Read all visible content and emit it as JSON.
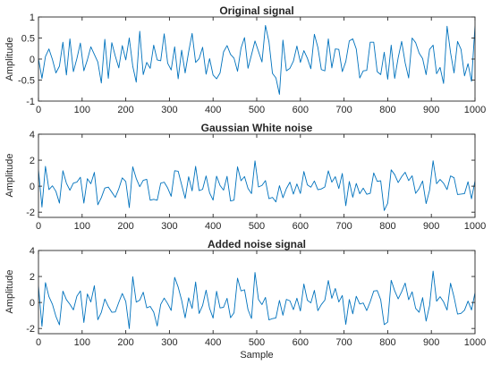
{
  "chart_data": [
    {
      "type": "line",
      "title": "Original signal",
      "xlabel": "",
      "ylabel": "Amplitude",
      "xlim": [
        0,
        1000
      ],
      "ylim": [
        -1,
        1
      ],
      "x_ticks": [
        0,
        100,
        200,
        300,
        400,
        500,
        600,
        700,
        800,
        900,
        1000
      ],
      "y_ticks": [
        -1,
        -0.5,
        0,
        0.5,
        1
      ],
      "y_tick_labels": [
        "-1",
        "-0.5",
        "0",
        "0.5",
        "1"
      ],
      "grid": false,
      "line_color": "#0072bd",
      "series": [
        {
          "x_start": 0,
          "x_step": 8,
          "values": [
            0.01,
            -0.46,
            0.06,
            0.24,
            -0.01,
            -0.33,
            -0.17,
            0.4,
            -0.38,
            0.48,
            -0.3,
            0.01,
            0.38,
            -0.28,
            -0.02,
            0.29,
            0.11,
            -0.07,
            -0.57,
            0.47,
            -0.46,
            0.39,
            0.07,
            -0.21,
            0.32,
            -0.02,
            0.5,
            -0.17,
            -0.55,
            0.66,
            -0.37,
            -0.08,
            -0.22,
            0.33,
            -0.02,
            -0.04,
            0.6,
            -0.1,
            -0.26,
            0.29,
            -0.47,
            0.21,
            -0.33,
            0.17,
            0.61,
            -0.08,
            0.01,
            0.28,
            -0.36,
            0.01,
            -0.38,
            -0.47,
            -0.33,
            0.17,
            0.32,
            0.11,
            0.02,
            -0.29,
            0.26,
            0.51,
            -0.22,
            0.1,
            0.43,
            0.18,
            -0.07,
            0.8,
            0.41,
            -0.34,
            -0.45,
            -0.84,
            0.45,
            -0.28,
            -0.22,
            -0.05,
            0.31,
            -0.08,
            0.2,
            0.02,
            -0.23,
            0.59,
            0.28,
            -0.25,
            -0.28,
            0.48,
            -0.21,
            0.24,
            0.23,
            -0.3,
            -0.06,
            0.43,
            0.48,
            0.24,
            -0.45,
            -0.28,
            -0.27,
            0.4,
            0.4,
            -0.3,
            -0.37,
            0.16,
            -0.48,
            0.33,
            -0.46,
            0.03,
            0.42,
            -0.09,
            -0.45,
            0.5,
            0.39,
            0.14,
            0.01,
            -0.37,
            0.23,
            0.33,
            -0.35,
            -0.2,
            -0.58,
            0.78,
            0.15,
            -0.33,
            0.42,
            0.23,
            -0.4,
            -0.11,
            -0.53,
            0.79
          ]
        }
      ]
    },
    {
      "type": "line",
      "title": "Gaussian White noise",
      "xlabel": "",
      "ylabel": "Amplitude",
      "xlim": [
        0,
        1000
      ],
      "ylim": [
        -2.4,
        4
      ],
      "x_ticks": [
        0,
        100,
        200,
        300,
        400,
        500,
        600,
        700,
        800,
        900,
        1000
      ],
      "y_ticks": [
        -2,
        0,
        2,
        4
      ],
      "y_tick_labels": [
        "-2",
        "0",
        "2",
        "4"
      ],
      "grid": false,
      "line_color": "#0072bd",
      "series": [
        {
          "x_start": 0,
          "x_step": 8,
          "values": [
            1.27,
            -1.61,
            1.53,
            -0.26,
            0.03,
            -0.4,
            -1.3,
            1.19,
            0.23,
            -0.31,
            0.24,
            0.31,
            0.69,
            -1.3,
            0.58,
            0.19,
            1.06,
            -1.43,
            -0.88,
            -0.14,
            -0.07,
            -0.46,
            -0.86,
            -0.2,
            0.64,
            0.36,
            -1.65,
            1.49,
            0.59,
            -0.04,
            0.45,
            0.53,
            -1.08,
            -1.01,
            -1.08,
            0.23,
            0.31,
            -0.14,
            -0.78,
            1.19,
            1.15,
            0.1,
            -0.94,
            0.73,
            -0.36,
            1.53,
            -0.34,
            -0.24,
            0.79,
            -0.51,
            -1.07,
            0.77,
            0.05,
            -0.3,
            0.76,
            -1.14,
            -1.07,
            1.49,
            0.42,
            0.74,
            -0.17,
            -0.57,
            1.95,
            -0.06,
            0.06,
            0.43,
            -0.96,
            -0.86,
            -1.21,
            0.04,
            -0.89,
            -0.18,
            0.31,
            -0.61,
            0.17,
            -0.56,
            1.13,
            0.1,
            -0.08,
            0.4,
            -0.27,
            -0.21,
            -0.06,
            1.18,
            0.31,
            0.73,
            -0.18,
            0.98,
            -1.5,
            0.36,
            -0.85,
            0.21,
            -0.58,
            -0.15,
            -0.62,
            -0.55,
            1.02,
            0.37,
            0.42,
            -1.87,
            -1.31,
            1.26,
            0.89,
            0.28,
            0.73,
            1.07,
            0.43,
            0.8,
            -0.55,
            -0.18,
            0.4,
            -1.34,
            -0.3,
            1.96,
            0.19,
            0.52,
            0.23,
            -0.26,
            0.79,
            0.65,
            -0.64,
            -0.61,
            -0.57,
            0.34,
            -0.97,
            0.41
          ]
        }
      ]
    },
    {
      "type": "line",
      "title": "Added noise signal",
      "xlabel": "Sample",
      "ylabel": "Amplitude",
      "xlim": [
        0,
        1000
      ],
      "ylim": [
        -2.4,
        4
      ],
      "x_ticks": [
        0,
        100,
        200,
        300,
        400,
        500,
        600,
        700,
        800,
        900,
        1000
      ],
      "y_ticks": [
        -2,
        0,
        2,
        4
      ],
      "y_tick_labels": [
        "-2",
        "0",
        "2",
        "4"
      ],
      "grid": false,
      "line_color": "#0072bd",
      "series": [
        {
          "x_start": 0,
          "x_step": 8,
          "values": [
            1.27,
            -1.84,
            1.53,
            0.45,
            -0.14,
            -1.07,
            -1.72,
            0.87,
            0.22,
            -0.14,
            -0.57,
            0.48,
            0.89,
            -1.54,
            0.66,
            0.04,
            1.29,
            -1.33,
            -0.76,
            0.27,
            -0.3,
            -0.75,
            -0.73,
            0.01,
            0.69,
            0.07,
            -2.01,
            1.98,
            0.03,
            0.18,
            0.79,
            -0.41,
            -0.3,
            -0.74,
            -1.81,
            -0.15,
            0.34,
            -0.09,
            -0.61,
            1.93,
            1.19,
            0.17,
            -1.18,
            0.36,
            -0.46,
            1.58,
            -0.85,
            -0.23,
            0.95,
            -0.45,
            -1.2,
            0.86,
            -0.42,
            -0.37,
            0.32,
            -1.17,
            -0.79,
            1.87,
            0.89,
            0.98,
            -0.55,
            -1.23,
            2.31,
            0.23,
            -0.16,
            0.39,
            -1.34,
            -1.24,
            -1.18,
            0.16,
            -0.98,
            0.24,
            0.13,
            -0.55,
            0.33,
            -0.65,
            1.42,
            0.17,
            -0.03,
            0.93,
            -0.63,
            -0.16,
            0.18,
            1.69,
            0.32,
            1.08,
            0.04,
            0.54,
            -1.68,
            0.23,
            -0.87,
            0.48,
            -0.12,
            -0.04,
            -0.62,
            0.06,
            0.88,
            0.92,
            0.21,
            -1.7,
            -1.51,
            1.71,
            0.9,
            0.28,
            0.83,
            1.49,
            0.21,
            0.82,
            -0.45,
            -0.75,
            0.37,
            -1.43,
            -0.23,
            2.41,
            0.1,
            0.45,
            0.05,
            -0.58,
            1.48,
            0.41,
            -0.89,
            -0.84,
            -0.59,
            0.11,
            -0.57,
            0.75
          ]
        }
      ]
    }
  ]
}
